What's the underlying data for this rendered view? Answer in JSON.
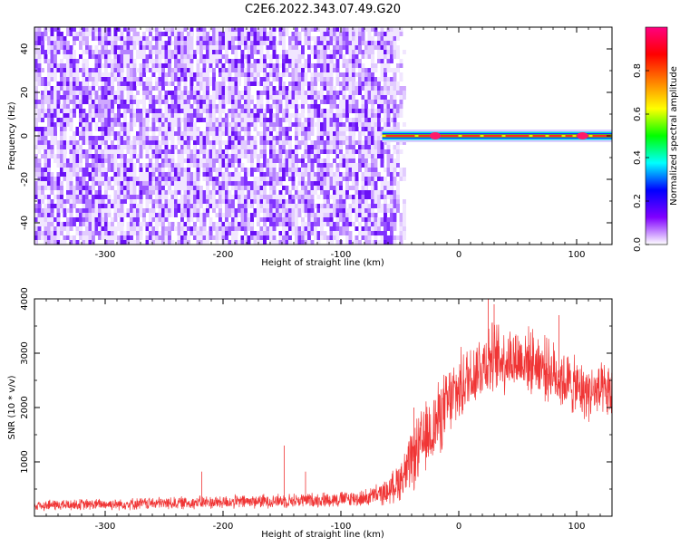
{
  "title": "C2E6.2022.343.07.49.G20",
  "chart_data": [
    {
      "type": "heatmap",
      "xlabel": "Height of straight line (km)",
      "ylabel": "Frequency (Hz)",
      "xlim": [
        -360,
        130
      ],
      "ylim": [
        -50,
        50
      ],
      "xticks": [
        -300,
        -200,
        -100,
        0,
        100
      ],
      "yticks": [
        -40,
        -20,
        0,
        20,
        40
      ],
      "colorbar": {
        "label": "Normalized spectral amplitude",
        "range": [
          0,
          1
        ],
        "ticks": [
          "0.0",
          "0.2",
          "0.4",
          "0.6",
          "0.8"
        ],
        "colors": [
          "#ffffff",
          "#8000ff",
          "#0000ff",
          "#00ffff",
          "#00ff00",
          "#ffff00",
          "#ff8000",
          "#ff0000",
          "#ff0080"
        ]
      },
      "noise_region_x": [
        -360,
        -60
      ],
      "signal_region_x": [
        -65,
        130
      ],
      "signal_center_frequency": 0,
      "signal_peak_spots_x": [
        -20,
        105
      ],
      "grid": false
    },
    {
      "type": "line",
      "xlabel": "Height of straight line (km)",
      "ylabel": "SNR (10 * v/v)",
      "xlim": [
        -360,
        130
      ],
      "ylim": [
        0,
        4000
      ],
      "xticks": [
        -300,
        -200,
        -100,
        0,
        100
      ],
      "yticks": [
        1000,
        2000,
        3000,
        4000
      ],
      "color": "#f03535",
      "envelope": [
        {
          "x": -360,
          "mean": 200,
          "spread": 100
        },
        {
          "x": -300,
          "mean": 220,
          "spread": 100
        },
        {
          "x": -200,
          "mean": 260,
          "spread": 120
        },
        {
          "x": -120,
          "mean": 300,
          "spread": 130
        },
        {
          "x": -80,
          "mean": 330,
          "spread": 150
        },
        {
          "x": -60,
          "mean": 450,
          "spread": 220
        },
        {
          "x": -45,
          "mean": 800,
          "spread": 450
        },
        {
          "x": -35,
          "mean": 1200,
          "spread": 600
        },
        {
          "x": -20,
          "mean": 1700,
          "spread": 650
        },
        {
          "x": -5,
          "mean": 2200,
          "spread": 650
        },
        {
          "x": 10,
          "mean": 2600,
          "spread": 600
        },
        {
          "x": 25,
          "mean": 2900,
          "spread": 650
        },
        {
          "x": 45,
          "mean": 2900,
          "spread": 600
        },
        {
          "x": 65,
          "mean": 2850,
          "spread": 550
        },
        {
          "x": 85,
          "mean": 2550,
          "spread": 550
        },
        {
          "x": 105,
          "mean": 2300,
          "spread": 500
        },
        {
          "x": 130,
          "mean": 2250,
          "spread": 500
        }
      ],
      "spikes": [
        {
          "x": -218,
          "y": 820
        },
        {
          "x": -148,
          "y": 1300
        },
        {
          "x": -130,
          "y": 820
        },
        {
          "x": -38,
          "y": 2000
        },
        {
          "x": 25,
          "y": 4000
        },
        {
          "x": 30,
          "y": 3900
        },
        {
          "x": 85,
          "y": 3700
        }
      ],
      "grid": false
    }
  ]
}
